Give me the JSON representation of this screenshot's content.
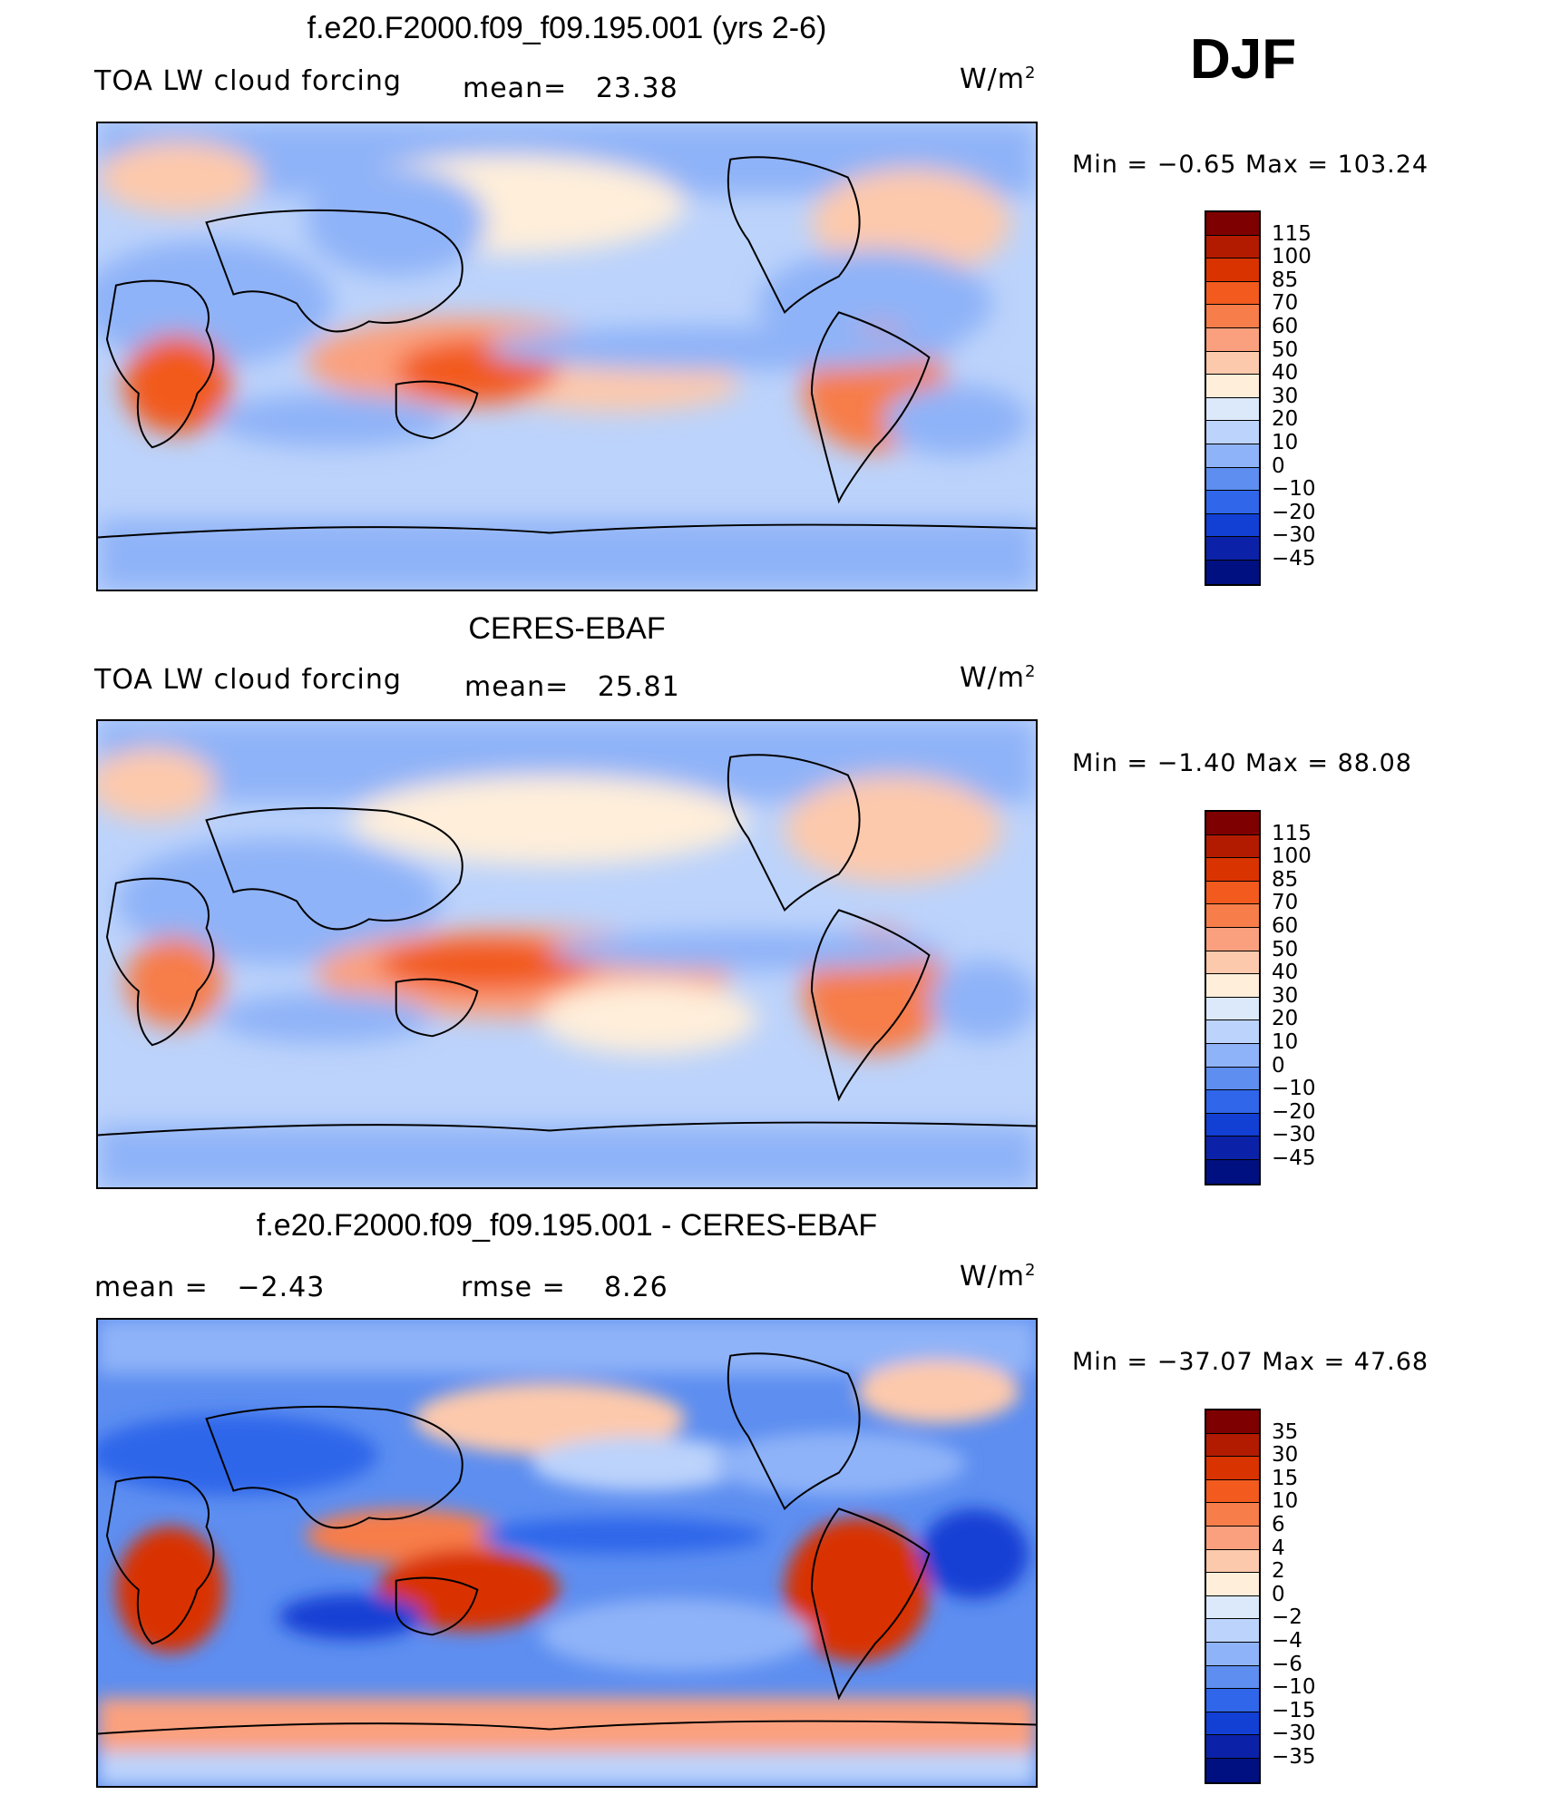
{
  "season": "DJF",
  "panels": [
    {
      "id": "model",
      "title": "f.e20.F2000.f09_f09.195.001 (yrs 2-6)",
      "left_label": "TOA LW cloud forcing",
      "stat1_label": "mean=",
      "stat1_value": "23.38",
      "stat2_label": "",
      "stat2_value": "",
      "units_base": "W/m",
      "units_exp": "2",
      "range_label": "Min =   −0.65 Max =  103.24",
      "colorbar": {
        "levels": [
          "115",
          "100",
          "85",
          "70",
          "60",
          "50",
          "40",
          "30",
          "20",
          "10",
          "0",
          "−10",
          "−20",
          "−30",
          "−45"
        ],
        "colors": [
          "#7f0000",
          "#b21b00",
          "#d93300",
          "#f25a1e",
          "#f77d4a",
          "#fba07e",
          "#fdc9ac",
          "#feeeda",
          "#dbe9fb",
          "#bcd3fb",
          "#8fb3f8",
          "#5d8ef0",
          "#2f66ea",
          "#1240d4",
          "#0b22a8",
          "#001080"
        ]
      }
    },
    {
      "id": "obs",
      "title": "CERES-EBAF",
      "left_label": "TOA LW cloud forcing",
      "stat1_label": "mean=",
      "stat1_value": "25.81",
      "stat2_label": "",
      "stat2_value": "",
      "units_base": "W/m",
      "units_exp": "2",
      "range_label": "Min =   −1.40 Max =   88.08",
      "colorbar": {
        "levels": [
          "115",
          "100",
          "85",
          "70",
          "60",
          "50",
          "40",
          "30",
          "20",
          "10",
          "0",
          "−10",
          "−20",
          "−30",
          "−45"
        ],
        "colors": [
          "#7f0000",
          "#b21b00",
          "#d93300",
          "#f25a1e",
          "#f77d4a",
          "#fba07e",
          "#fdc9ac",
          "#feeeda",
          "#dbe9fb",
          "#bcd3fb",
          "#8fb3f8",
          "#5d8ef0",
          "#2f66ea",
          "#1240d4",
          "#0b22a8",
          "#001080"
        ]
      }
    },
    {
      "id": "diff",
      "title": "f.e20.F2000.f09_f09.195.001 - CERES-EBAF",
      "left_label": "",
      "stat1_label": "mean =",
      "stat1_value": "−2.43",
      "stat2_label": "rmse =",
      "stat2_value": "8.26",
      "units_base": "W/m",
      "units_exp": "2",
      "range_label": "Min = −37.07 Max =   47.68",
      "colorbar": {
        "levels": [
          "35",
          "30",
          "15",
          "10",
          "6",
          "4",
          "2",
          "0",
          "−2",
          "−4",
          "−6",
          "−10",
          "−15",
          "−30",
          "−35"
        ],
        "colors": [
          "#7f0000",
          "#b21b00",
          "#d93300",
          "#f25a1e",
          "#f77d4a",
          "#fba07e",
          "#fdc9ac",
          "#feeeda",
          "#dbe9fb",
          "#bcd3fb",
          "#8fb3f8",
          "#5d8ef0",
          "#2f66ea",
          "#1240d4",
          "#0b22a8",
          "#001080"
        ]
      }
    }
  ]
}
